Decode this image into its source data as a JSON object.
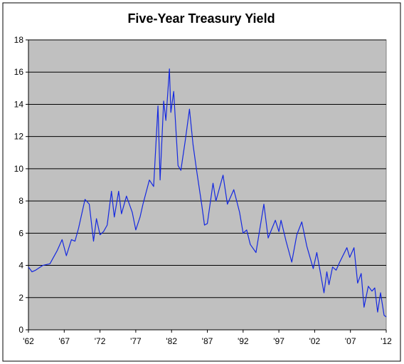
{
  "chart_data": {
    "type": "line",
    "title": "Five-Year Treasury Yield",
    "x": [
      1962.0,
      1962.5,
      1963,
      1964,
      1965,
      1966,
      1966.7,
      1967.3,
      1968,
      1968.5,
      1969,
      1969.9,
      1970.5,
      1971.1,
      1971.5,
      1972,
      1972.5,
      1973,
      1973.6,
      1974,
      1974.6,
      1975,
      1975.7,
      1976.5,
      1977,
      1977.6,
      1978,
      1978.9,
      1979.5,
      1980.1,
      1980.4,
      1980.9,
      1981.2,
      1981.7,
      1981.9,
      1982.3,
      1982.9,
      1983.3,
      1983.9,
      1984.5,
      1985,
      1985.5,
      1986.2,
      1986.6,
      1987,
      1987.8,
      1988.2,
      1989.2,
      1989.8,
      1990.7,
      1991.5,
      1992,
      1992.5,
      1993,
      1993.8,
      1994.9,
      1995.5,
      1996.5,
      1997,
      1997.3,
      1998,
      1998.8,
      1999.5,
      2000.2,
      2000.9,
      2001.8,
      2002.3,
      2003.3,
      2003.7,
      2004,
      2004.5,
      2005,
      2005.5,
      2006.5,
      2006.9,
      2007.5,
      2008,
      2008.5,
      2008.9,
      2009.5,
      2010,
      2010.4,
      2010.8,
      2011.2,
      2011.7,
      2012
    ],
    "series": [
      {
        "color": "#1428e0",
        "values": [
          3.9,
          3.6,
          3.7,
          4.0,
          4.1,
          4.9,
          5.6,
          4.6,
          5.6,
          5.5,
          6.3,
          8.1,
          7.8,
          5.5,
          6.9,
          5.9,
          6.1,
          6.5,
          8.6,
          7.0,
          8.6,
          7.2,
          8.3,
          7.3,
          6.2,
          7.0,
          7.8,
          9.3,
          8.9,
          13.9,
          9.3,
          14.2,
          13.0,
          16.2,
          13.5,
          14.8,
          10.2,
          9.9,
          11.7,
          13.7,
          11.5,
          9.9,
          7.8,
          6.5,
          6.6,
          9.1,
          8.0,
          9.6,
          7.8,
          8.7,
          7.3,
          6.0,
          6.2,
          5.3,
          4.8,
          7.8,
          5.7,
          6.8,
          6.1,
          6.8,
          5.5,
          4.2,
          5.9,
          6.7,
          5.2,
          3.8,
          4.8,
          2.3,
          3.6,
          2.8,
          3.9,
          3.7,
          4.2,
          5.1,
          4.5,
          5.1,
          2.9,
          3.5,
          1.4,
          2.7,
          2.4,
          2.6,
          1.1,
          2.3,
          0.9,
          0.8
        ]
      }
    ],
    "xlim": [
      1962,
      2012
    ],
    "xticks": [
      {
        "value": 1962,
        "label": "'62"
      },
      {
        "value": 1967,
        "label": "'67"
      },
      {
        "value": 1972,
        "label": "'72"
      },
      {
        "value": 1977,
        "label": "'77"
      },
      {
        "value": 1982,
        "label": "'82"
      },
      {
        "value": 1987,
        "label": "'87"
      },
      {
        "value": 1992,
        "label": "'92"
      },
      {
        "value": 1997,
        "label": "'97"
      },
      {
        "value": 2002,
        "label": "'02"
      },
      {
        "value": 2007,
        "label": "'07"
      },
      {
        "value": 2012,
        "label": "'12"
      }
    ],
    "ylim": [
      0,
      18
    ],
    "yticks": [
      0,
      2,
      4,
      6,
      8,
      10,
      12,
      14,
      16,
      18
    ],
    "grid": true
  }
}
